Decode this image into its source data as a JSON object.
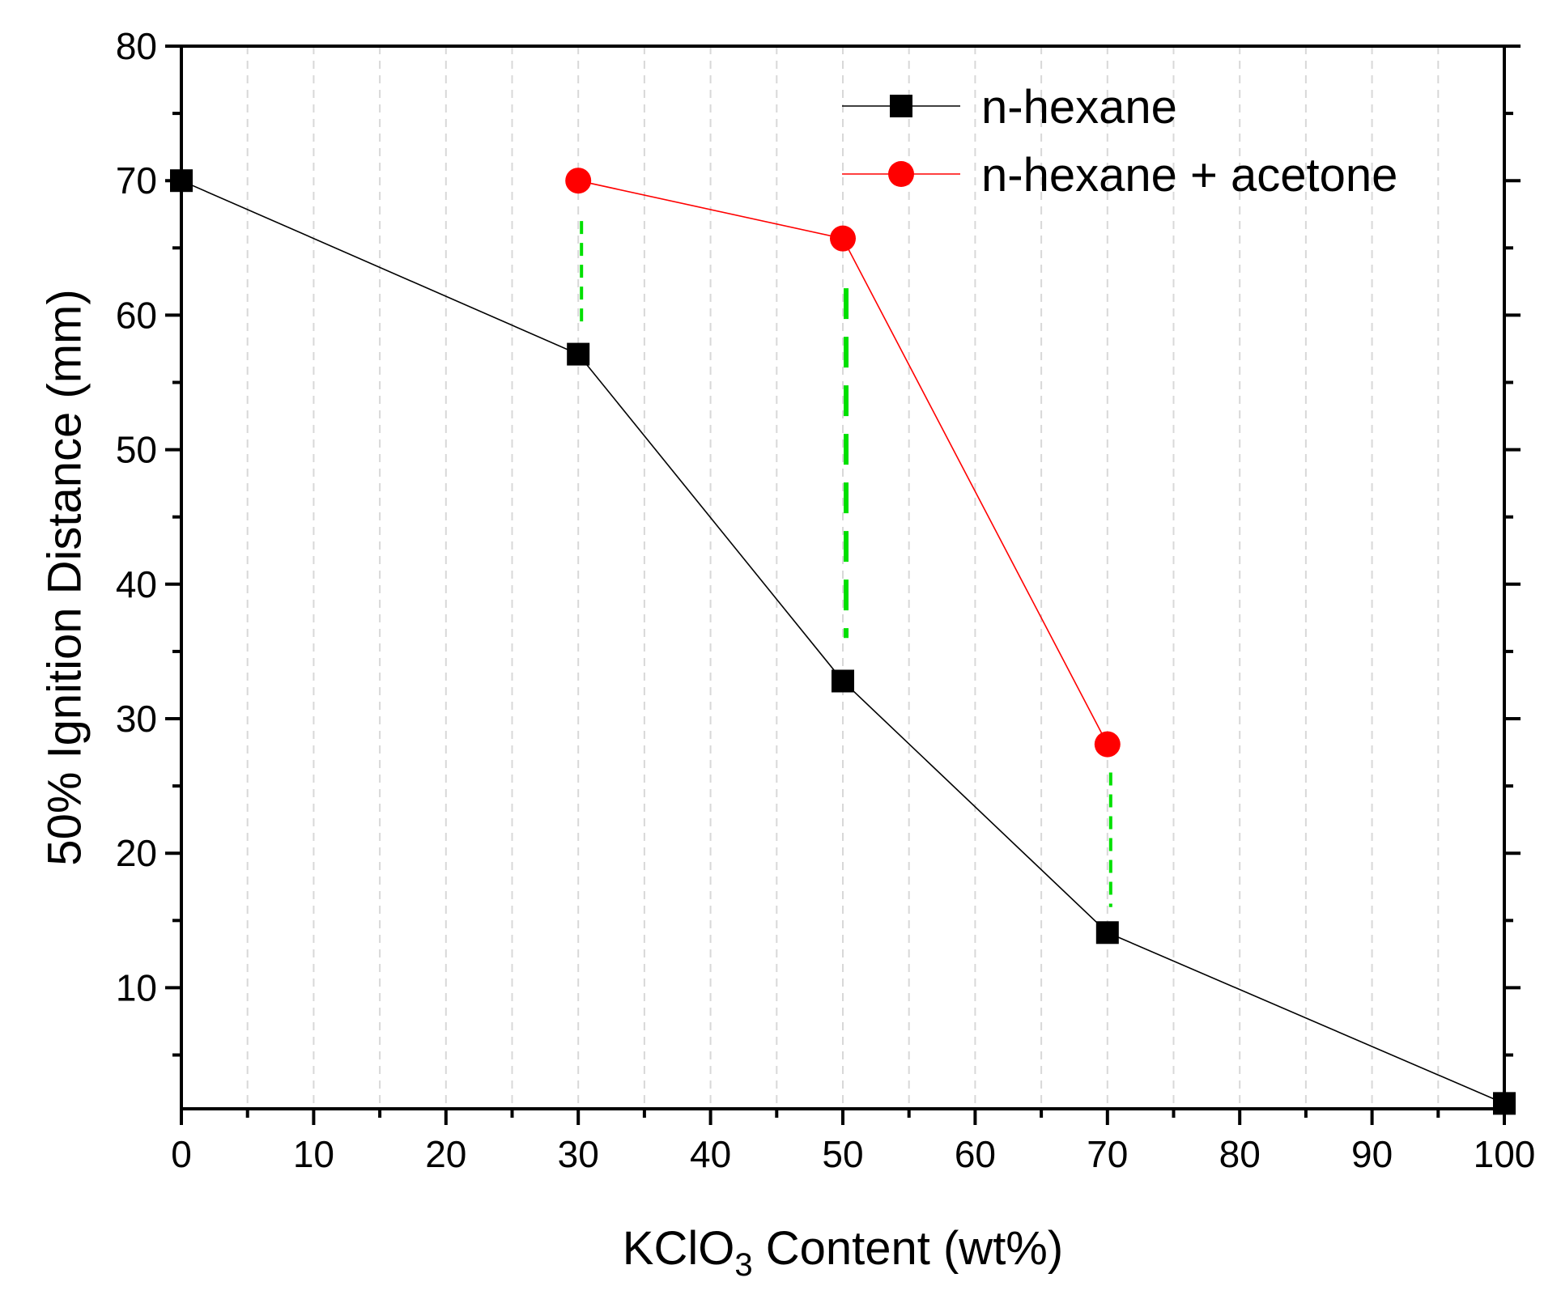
{
  "chart_data": {
    "type": "line",
    "title": "",
    "xlabel": {
      "prefix": "KClO",
      "subscript": "3",
      "suffix": " Content (wt%)"
    },
    "ylabel": "50% Ignition Distance (mm)",
    "xlim": [
      0,
      100
    ],
    "ylim": [
      1,
      80
    ],
    "x_major_ticks": [
      0,
      10,
      20,
      30,
      40,
      50,
      60,
      70,
      80,
      90,
      100
    ],
    "x_minor_gridlines": [
      5,
      15,
      25,
      35,
      45,
      55,
      65,
      75,
      85,
      95
    ],
    "y_major_ticks": [
      10,
      20,
      30,
      40,
      50,
      60,
      70,
      80
    ],
    "y_minor_ticks": [
      5,
      15,
      25,
      35,
      45,
      55,
      65,
      75
    ],
    "y_tick_labels": [
      "10",
      "20",
      "30",
      "40",
      "50",
      "60",
      "70",
      "80"
    ],
    "x_tick_labels": [
      "0",
      "10",
      "20",
      "30",
      "40",
      "50",
      "60",
      "70",
      "80",
      "90",
      "100"
    ],
    "grid": "vertical dashed",
    "legend_position": "top-right",
    "series": [
      {
        "name": "n-hexane",
        "color": "#000000",
        "marker": "square",
        "x": [
          0,
          30,
          50,
          70,
          100
        ],
        "y": [
          70,
          57.1,
          32.8,
          14.1,
          1.4
        ]
      },
      {
        "name": "n-hexane + acetone",
        "color": "#ff0000",
        "marker": "circle",
        "x": [
          30,
          50,
          70
        ],
        "y": [
          70,
          65.7,
          28.1
        ]
      }
    ],
    "annotations": {
      "type": "vertical dashed connectors",
      "color": "#00e000",
      "segments": [
        {
          "x": 30,
          "y_top": 67,
          "y_bottom": 59.5
        },
        {
          "x": 50,
          "y_top": 62,
          "y_bottom": 36
        },
        {
          "x": 70,
          "y_top": 26,
          "y_bottom": 16
        }
      ]
    }
  }
}
